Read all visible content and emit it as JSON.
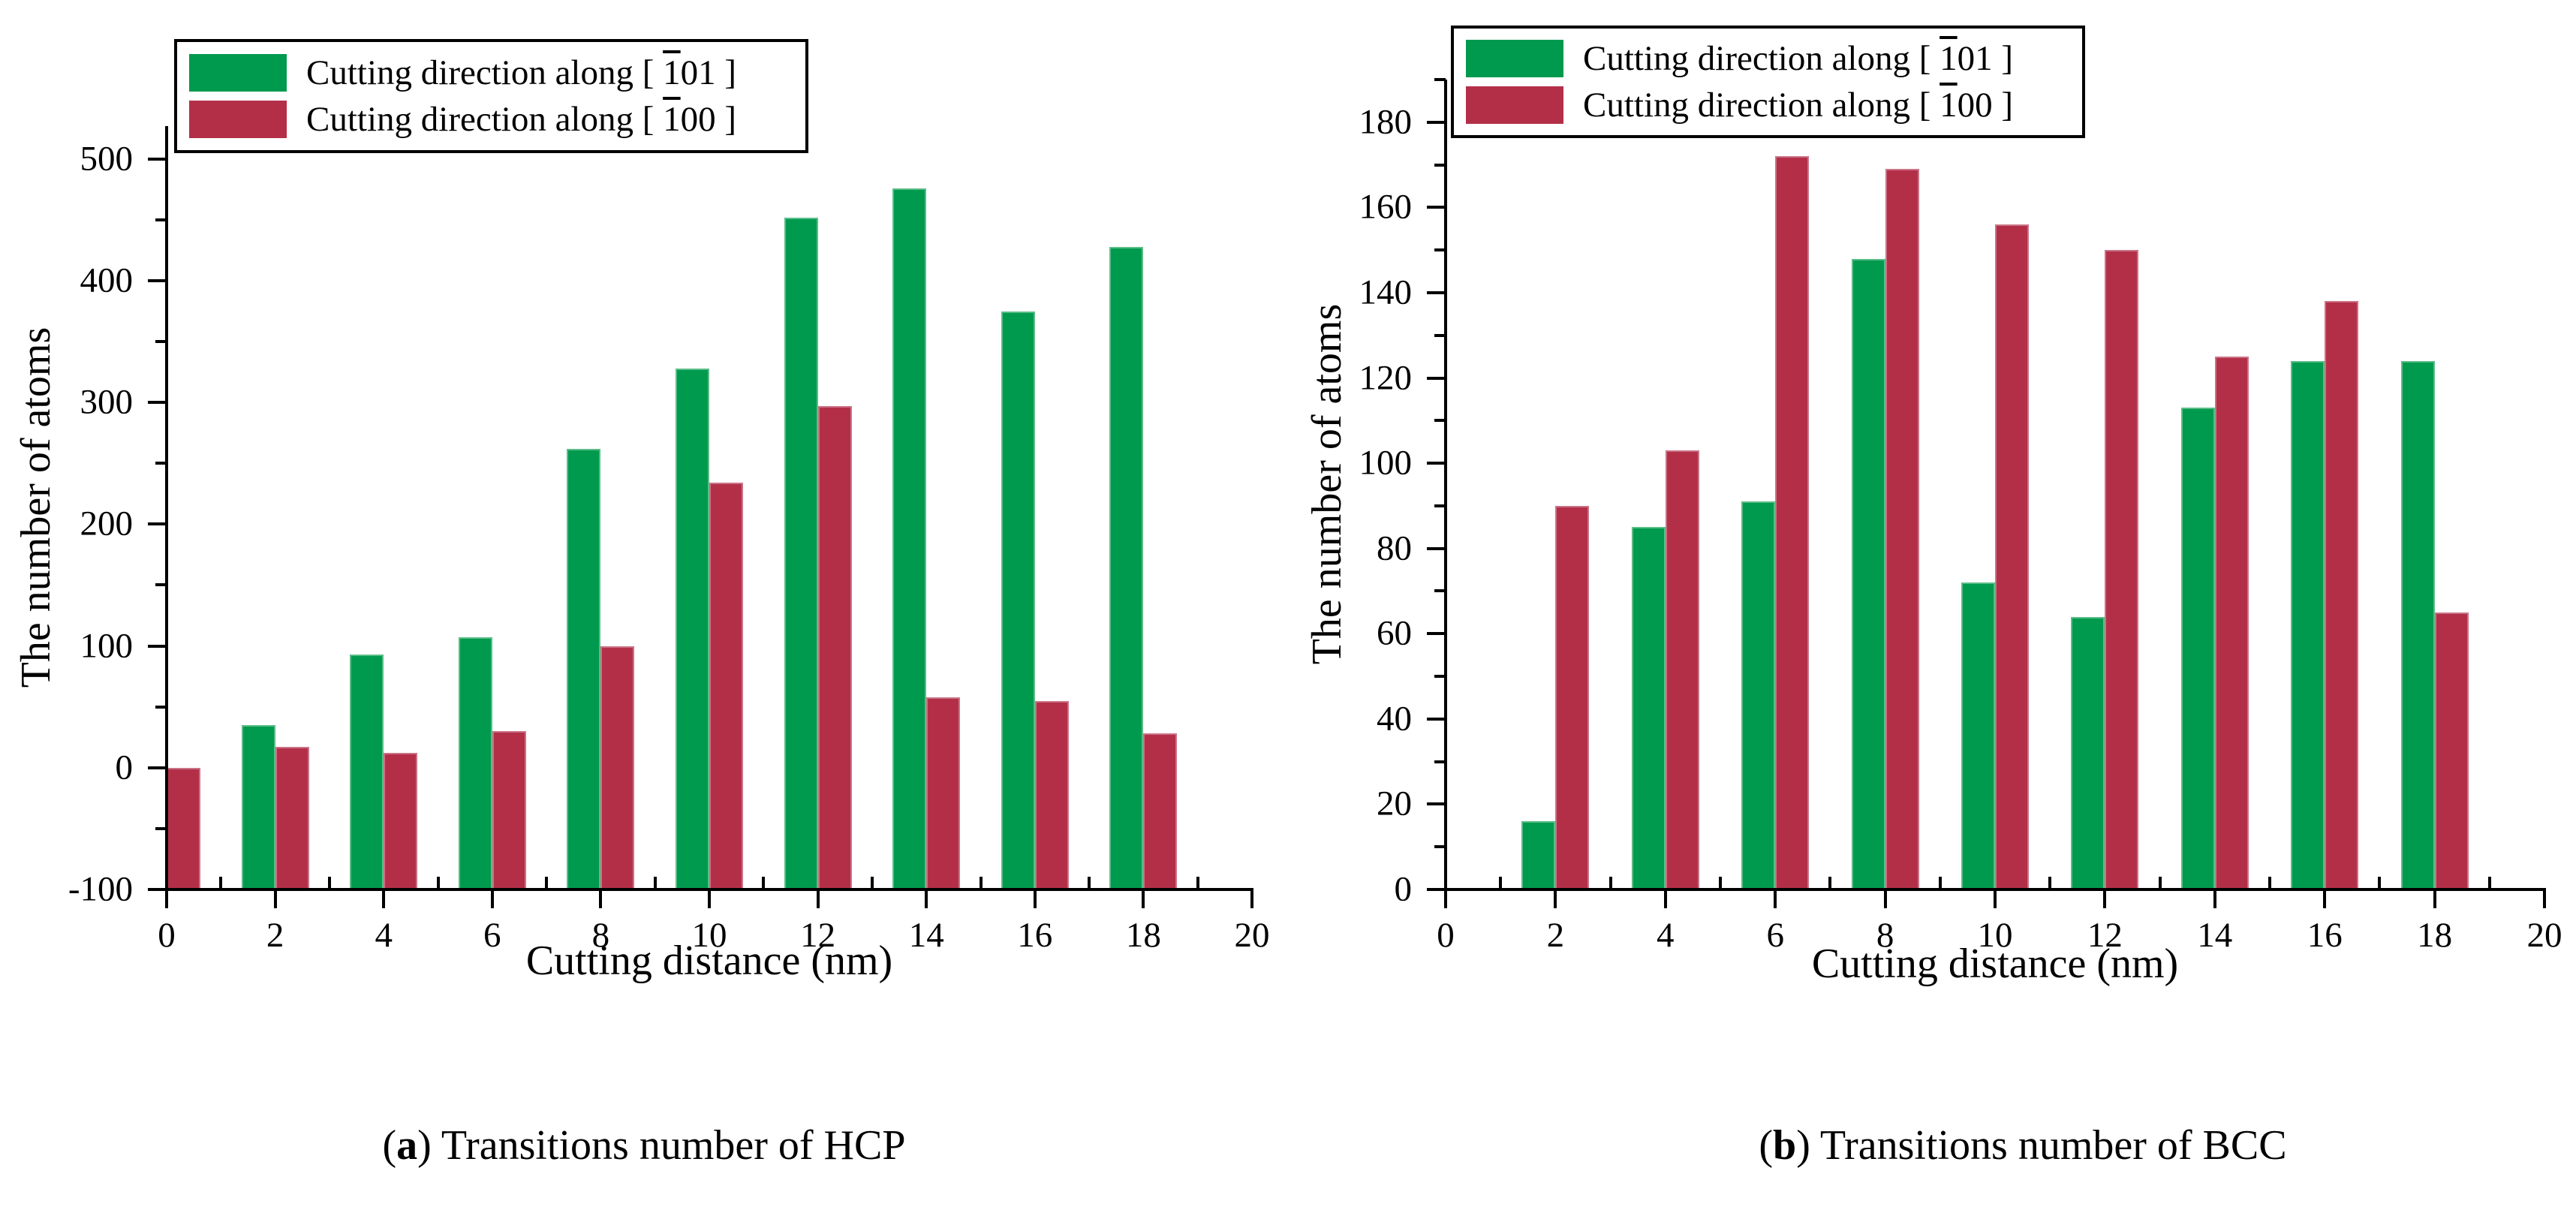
{
  "figure": {
    "captions": {
      "a": {
        "paren_open": "(",
        "marker": "a",
        "paren_close": ")",
        "text": " Transitions number of HCP"
      },
      "b": {
        "paren_open": "(",
        "marker": "b",
        "paren_close": ")",
        "text": " Transitions number of BCC"
      }
    }
  },
  "colors": {
    "green": "#009A4E",
    "crimson": "#B32F48",
    "axis": "#000000",
    "background": "#FFFFFF"
  },
  "legend": {
    "items": [
      {
        "label": "Cutting direction along [ 1̅01 ]",
        "prefix": "Cutting direction along [ ",
        "overline": "1",
        "suffix": "01 ]",
        "color_key": "green"
      },
      {
        "label": "Cutting direction along [ 1̅00 ]",
        "prefix": "Cutting direction along [ ",
        "overline": "1",
        "suffix": "00 ]",
        "color_key": "crimson"
      }
    ]
  },
  "chart_data": [
    {
      "id": "hcp",
      "type": "bar",
      "title": "(a) Transitions number of HCP",
      "xlabel": "Cutting distance (nm)",
      "ylabel": "The number of atoms",
      "legend_position": "top-left",
      "grid": false,
      "categories": [
        0,
        2,
        4,
        6,
        8,
        10,
        12,
        14,
        16,
        18
      ],
      "series": [
        {
          "name": "Cutting direction along [ 1̅01 ]",
          "color_key": "green",
          "values": [
            null,
            35,
            93,
            107,
            262,
            328,
            452,
            476,
            375,
            428
          ]
        },
        {
          "name": "Cutting direction along [ 1̅00 ]",
          "color_key": "crimson",
          "values": [
            0,
            17,
            12,
            30,
            100,
            234,
            297,
            58,
            55,
            28
          ]
        }
      ],
      "xlim": [
        0,
        20
      ],
      "ylim": [
        -100,
        527
      ],
      "xticks": [
        0,
        2,
        4,
        6,
        8,
        10,
        12,
        14,
        16,
        18,
        20
      ],
      "yticks": [
        -100,
        0,
        100,
        200,
        300,
        400,
        500
      ],
      "x_minor_step": 1,
      "y_minor_step": 50,
      "bar_baseline": -100
    },
    {
      "id": "bcc",
      "type": "bar",
      "title": "(b) Transitions number of BCC",
      "xlabel": "Cutting distance (nm)",
      "ylabel": "The number of atoms",
      "legend_position": "top-left",
      "grid": false,
      "categories": [
        2,
        4,
        6,
        8,
        10,
        12,
        14,
        16,
        18
      ],
      "series": [
        {
          "name": "Cutting direction along [ 1̅01 ]",
          "color_key": "green",
          "values": [
            16,
            85,
            91,
            148,
            72,
            64,
            113,
            124,
            124
          ]
        },
        {
          "name": "Cutting direction along [ 1̅00 ]",
          "color_key": "crimson",
          "values": [
            90,
            103,
            172,
            169,
            156,
            150,
            125,
            138,
            65
          ]
        }
      ],
      "xlim": [
        0,
        20
      ],
      "ylim": [
        0,
        190
      ],
      "xticks": [
        0,
        2,
        4,
        6,
        8,
        10,
        12,
        14,
        16,
        18,
        20
      ],
      "yticks": [
        0,
        20,
        40,
        60,
        80,
        100,
        120,
        140,
        160,
        180
      ],
      "x_minor_step": 1,
      "y_minor_step": 10,
      "bar_baseline": 0
    }
  ]
}
